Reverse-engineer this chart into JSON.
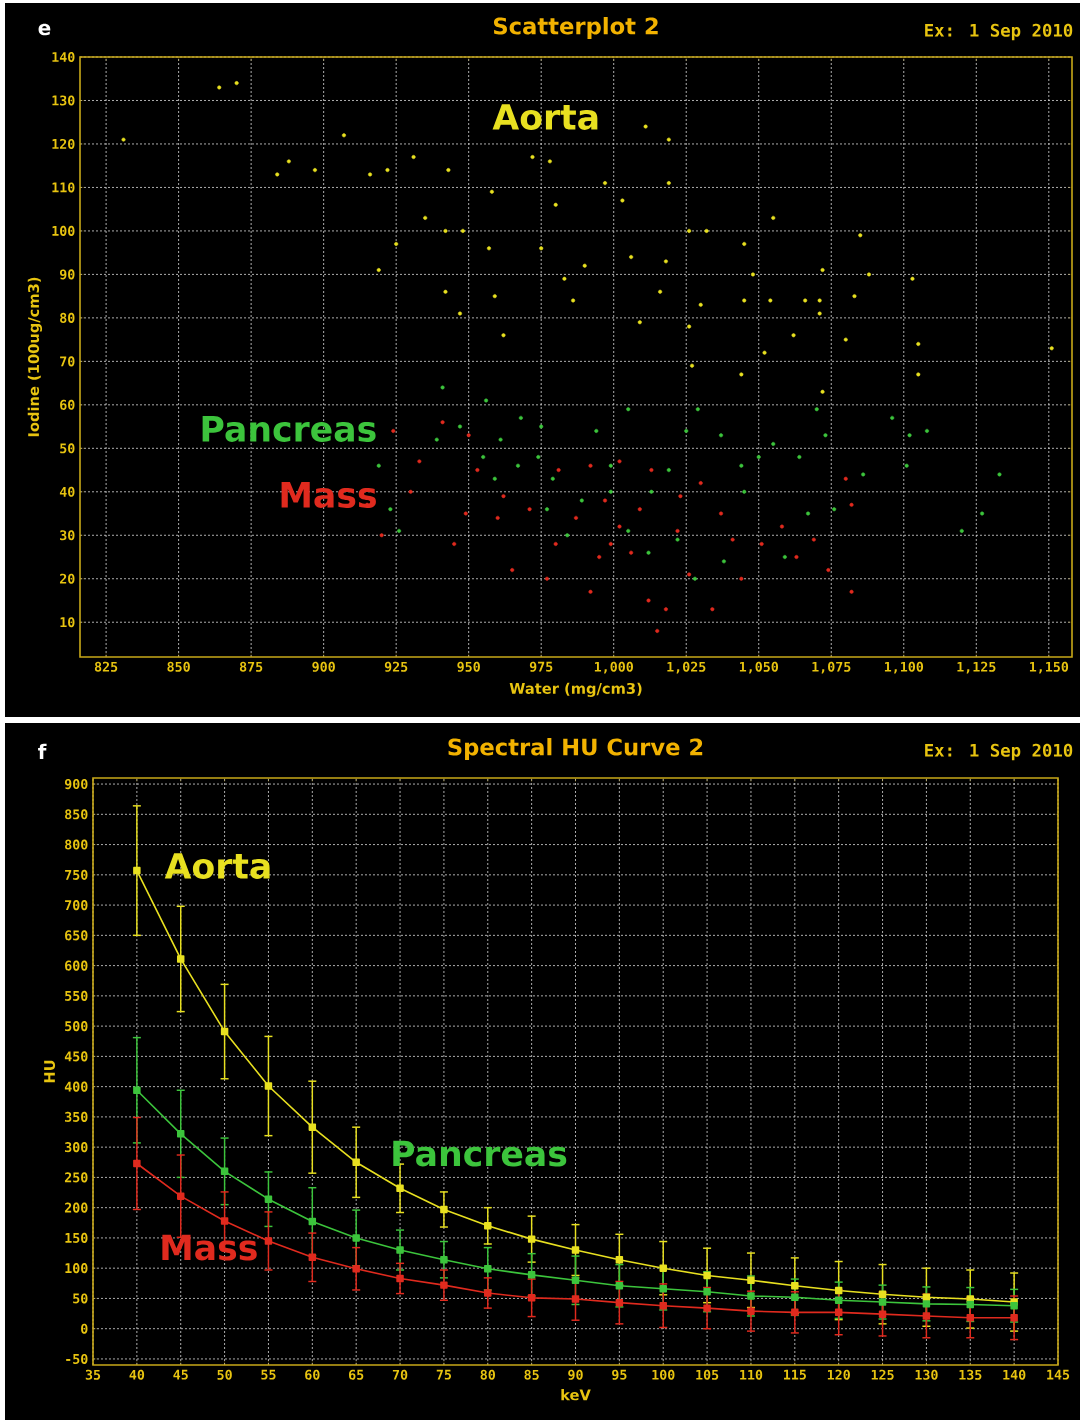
{
  "chart_data": [
    {
      "type": "scatter",
      "title": "Scatterplot 2",
      "xlabel": "Water (mg/cm3)",
      "ylabel": "Iodine (100ug/cm3)",
      "annotations": [
        "e",
        "Ex: 1 Sep 2010"
      ],
      "xlim": [
        816,
        1158
      ],
      "xticks": [
        825,
        850,
        875,
        900,
        925,
        950,
        975,
        {
          "value": 1000,
          "label": "1,000"
        },
        {
          "value": 1025,
          "label": "1,025"
        },
        {
          "value": 1050,
          "label": "1,050"
        },
        {
          "value": 1075,
          "label": "1,075"
        },
        {
          "value": 1100,
          "label": "1,100"
        },
        {
          "value": 1125,
          "label": "1,125"
        },
        {
          "value": 1150,
          "label": "1,150"
        }
      ],
      "ylim": [
        2,
        140
      ],
      "yticks": [
        10,
        20,
        30,
        40,
        50,
        60,
        70,
        80,
        90,
        100,
        110,
        120,
        130,
        140
      ],
      "grid": true,
      "marker": "circle",
      "series": [
        {
          "name": "Aorta",
          "color": "#e8e020",
          "x": [
            831,
            864,
            870,
            884,
            888,
            897,
            907,
            916,
            922,
            931,
            943,
            919,
            925,
            935,
            942,
            948,
            942,
            947,
            958,
            957,
            959,
            962,
            972,
            978,
            980,
            983,
            975,
            986,
            990,
            997,
            1003,
            1006,
            1011,
            1019,
            1019,
            1018,
            1016,
            1009,
            1026,
            1026,
            1032,
            1027,
            1030,
            1045,
            1045,
            1055,
            1048,
            1054,
            1052,
            1062,
            1066,
            1071,
            1072,
            1071,
            1085,
            1083,
            1088,
            1103,
            1105,
            1105,
            1151,
            1080,
            1072,
            1044
          ],
          "values": [
            121,
            133,
            134,
            113,
            116,
            114,
            122,
            113,
            114,
            117,
            114,
            91,
            97,
            103,
            100,
            100,
            86,
            81,
            109,
            96,
            85,
            76,
            117,
            116,
            106,
            89,
            96,
            84,
            92,
            111,
            107,
            94,
            124,
            121,
            111,
            93,
            86,
            79,
            78,
            100,
            100,
            69,
            83,
            84,
            97,
            103,
            90,
            84,
            72,
            76,
            84,
            84,
            91,
            81,
            99,
            85,
            90,
            89,
            74,
            67,
            73,
            75,
            63,
            67
          ]
        },
        {
          "name": "Pancreas",
          "color": "#3cc43c",
          "x": [
            941,
            947,
            939,
            919,
            923,
            926,
            956,
            961,
            968,
            975,
            979,
            974,
            959,
            994,
            999,
            1005,
            1013,
            1019,
            1025,
            1029,
            1037,
            1044,
            1050,
            1045,
            1055,
            1064,
            1070,
            1076,
            1073,
            1086,
            1096,
            1102,
            1108,
            1101,
            1120,
            1127,
            1133,
            989,
            1005,
            1022,
            1028,
            1012,
            1038,
            1059,
            1067,
            977,
            984,
            999,
            955,
            967
          ],
          "values": [
            64,
            55,
            52,
            46,
            36,
            31,
            61,
            52,
            57,
            55,
            43,
            48,
            43,
            54,
            46,
            59,
            40,
            45,
            54,
            59,
            53,
            46,
            48,
            40,
            51,
            48,
            59,
            36,
            53,
            44,
            57,
            53,
            54,
            46,
            31,
            35,
            44,
            38,
            31,
            29,
            20,
            26,
            24,
            25,
            35,
            36,
            30,
            40,
            48,
            46
          ]
        },
        {
          "name": "Mass",
          "color": "#e02a1e",
          "x": [
            915,
            920,
            933,
            930,
            941,
            924,
            945,
            949,
            953,
            960,
            965,
            971,
            977,
            980,
            987,
            992,
            997,
            1002,
            1006,
            1012,
            1015,
            1018,
            1022,
            1026,
            1034,
            1037,
            1044,
            1051,
            1058,
            1063,
            1069,
            1082,
            1080,
            1082,
            1074,
            1030,
            1002,
            992,
            1013,
            1009,
            995,
            981,
            950,
            962,
            1023,
            1041,
            999
          ],
          "values": [
            37,
            30,
            47,
            40,
            56,
            54,
            28,
            35,
            45,
            34,
            22,
            36,
            20,
            28,
            34,
            17,
            38,
            32,
            26,
            15,
            8,
            13,
            31,
            21,
            13,
            35,
            20,
            28,
            32,
            25,
            29,
            17,
            43,
            37,
            22,
            42,
            47,
            46,
            45,
            36,
            25,
            45,
            53,
            39,
            39,
            29,
            28
          ]
        }
      ]
    },
    {
      "type": "line",
      "title": "Spectral HU Curve 2",
      "xlabel": "keV",
      "ylabel": "HU",
      "annotations": [
        "f",
        "Ex: 1 Sep 2010"
      ],
      "x": [
        40,
        45,
        50,
        55,
        60,
        65,
        70,
        75,
        80,
        85,
        90,
        95,
        100,
        105,
        110,
        115,
        120,
        125,
        130,
        135,
        140
      ],
      "xlim": [
        35,
        145
      ],
      "xticks": [
        35,
        40,
        45,
        50,
        55,
        60,
        65,
        70,
        75,
        80,
        85,
        90,
        95,
        100,
        105,
        110,
        115,
        120,
        125,
        130,
        135,
        140,
        145
      ],
      "ylim": [
        -60,
        910
      ],
      "yticks": [
        -50,
        0,
        50,
        100,
        150,
        200,
        250,
        300,
        350,
        400,
        450,
        500,
        550,
        600,
        650,
        700,
        750,
        800,
        850,
        900
      ],
      "grid": true,
      "marker": "square",
      "series": [
        {
          "name": "Aorta",
          "color": "#e8e020",
          "values": [
            757,
            611,
            491,
            401,
            333,
            275,
            232,
            197,
            170,
            148,
            130,
            114,
            100,
            88,
            80,
            71,
            63,
            57,
            52,
            49,
            44
          ],
          "errors": [
            107,
            87,
            78,
            82,
            76,
            58,
            40,
            29,
            30,
            38,
            42,
            42,
            44,
            45,
            45,
            46,
            48,
            49,
            48,
            48,
            48
          ]
        },
        {
          "name": "Pancreas",
          "color": "#3cc43c",
          "values": [
            394,
            322,
            260,
            214,
            177,
            150,
            130,
            114,
            99,
            89,
            80,
            71,
            66,
            61,
            54,
            52,
            47,
            44,
            41,
            40,
            38
          ],
          "errors": [
            87,
            72,
            55,
            45,
            56,
            46,
            33,
            30,
            35,
            35,
            40,
            35,
            35,
            33,
            33,
            30,
            30,
            28,
            28,
            28,
            27
          ]
        },
        {
          "name": "Mass",
          "color": "#e02a1e",
          "values": [
            273,
            219,
            178,
            145,
            118,
            99,
            83,
            72,
            59,
            51,
            49,
            43,
            38,
            34,
            29,
            27,
            27,
            24,
            21,
            18,
            18
          ],
          "errors": [
            76,
            68,
            48,
            48,
            40,
            35,
            25,
            25,
            25,
            31,
            35,
            35,
            36,
            34,
            33,
            34,
            37,
            36,
            36,
            33,
            36
          ]
        }
      ]
    }
  ]
}
